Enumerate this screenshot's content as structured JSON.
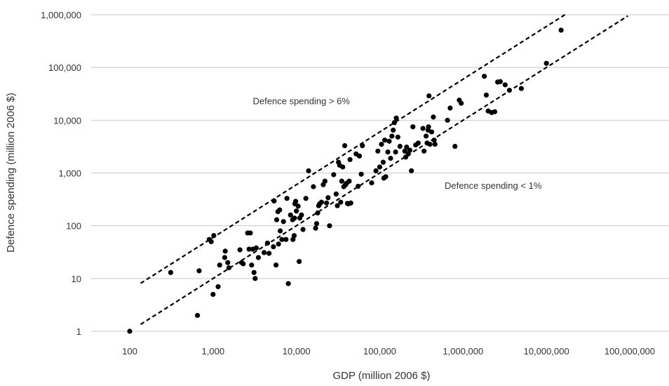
{
  "chart_data": {
    "type": "scatter",
    "xlabel": "GDP (million 2006 $)",
    "ylabel": "Defence spending (million 2006 $)",
    "xscale": "log",
    "yscale": "log",
    "xlim": [
      100,
      100000000
    ],
    "ylim": [
      1,
      1000000
    ],
    "x_ticks": [
      100,
      1000,
      10000,
      100000,
      1000000,
      10000000,
      100000000
    ],
    "x_tick_labels": [
      "100",
      "1,000",
      "10,000",
      "100,000",
      "1,000,000",
      "10,000,000",
      "100,000,000"
    ],
    "y_ticks": [
      1,
      10,
      100,
      1000,
      10000,
      100000,
      1000000
    ],
    "y_tick_labels": [
      "1",
      "10",
      "100",
      "1,000",
      "10,000",
      "100,000",
      "1,000,000"
    ],
    "grid": "horizontal",
    "colors": {
      "points": "#000000",
      "grid": "#c8c8c8",
      "reference_lines": "#000000"
    },
    "annotations": [
      {
        "text": "Defence spending > 6%",
        "x": 3000,
        "y": 20000
      },
      {
        "text": "Defence spending < 1%",
        "x": 600000,
        "y": 500
      }
    ],
    "reference_lines": [
      {
        "style": "dashed",
        "share_of_gdp": 0.06,
        "x_range": [
          135,
          17000000
        ]
      },
      {
        "style": "dashed",
        "share_of_gdp": 0.01,
        "x_range": [
          135,
          95000000
        ]
      }
    ],
    "points": [
      [
        100,
        1
      ],
      [
        310,
        13
      ],
      [
        650,
        2
      ],
      [
        680,
        14
      ],
      [
        900,
        55
      ],
      [
        950,
        50
      ],
      [
        1000,
        5
      ],
      [
        1020,
        65
      ],
      [
        1150,
        7
      ],
      [
        1200,
        18
      ],
      [
        1380,
        25
      ],
      [
        1400,
        33
      ],
      [
        1500,
        20
      ],
      [
        1550,
        16
      ],
      [
        2100,
        35
      ],
      [
        2200,
        20
      ],
      [
        2300,
        19
      ],
      [
        2600,
        73
      ],
      [
        2700,
        36
      ],
      [
        2800,
        73
      ],
      [
        2900,
        18
      ],
      [
        3000,
        36
      ],
      [
        3100,
        13
      ],
      [
        3200,
        10
      ],
      [
        3300,
        38
      ],
      [
        3500,
        25
      ],
      [
        4100,
        31
      ],
      [
        4500,
        47
      ],
      [
        4700,
        30
      ],
      [
        5300,
        40
      ],
      [
        5400,
        295
      ],
      [
        5700,
        18
      ],
      [
        5800,
        130
      ],
      [
        6000,
        185
      ],
      [
        6100,
        45
      ],
      [
        6300,
        200
      ],
      [
        6400,
        80
      ],
      [
        6700,
        55
      ],
      [
        7000,
        120
      ],
      [
        7500,
        55
      ],
      [
        7700,
        330
      ],
      [
        8000,
        8
      ],
      [
        8500,
        160
      ],
      [
        9000,
        130
      ],
      [
        9100,
        55
      ],
      [
        9400,
        65
      ],
      [
        9500,
        140
      ],
      [
        9600,
        260
      ],
      [
        9800,
        290
      ],
      [
        10000,
        190
      ],
      [
        10500,
        235
      ],
      [
        10800,
        21
      ],
      [
        11000,
        140
      ],
      [
        11500,
        160
      ],
      [
        12000,
        85
      ],
      [
        13000,
        330
      ],
      [
        14000,
        1100
      ],
      [
        16000,
        550
      ],
      [
        17000,
        90
      ],
      [
        17500,
        110
      ],
      [
        18000,
        175
      ],
      [
        18500,
        240
      ],
      [
        19000,
        260
      ],
      [
        20000,
        280
      ],
      [
        21000,
        600
      ],
      [
        22000,
        700
      ],
      [
        23000,
        270
      ],
      [
        24000,
        340
      ],
      [
        25000,
        100
      ],
      [
        28000,
        930
      ],
      [
        30000,
        400
      ],
      [
        31000,
        240
      ],
      [
        32000,
        1600
      ],
      [
        33000,
        1400
      ],
      [
        34000,
        280
      ],
      [
        35000,
        700
      ],
      [
        36000,
        1300
      ],
      [
        37000,
        550
      ],
      [
        38000,
        3300
      ],
      [
        39000,
        600
      ],
      [
        40000,
        640
      ],
      [
        41000,
        265
      ],
      [
        42000,
        260
      ],
      [
        43000,
        700
      ],
      [
        44000,
        1800
      ],
      [
        45000,
        270
      ],
      [
        52000,
        2300
      ],
      [
        55000,
        560
      ],
      [
        57000,
        2100
      ],
      [
        60000,
        950
      ],
      [
        62000,
        3300
      ],
      [
        80000,
        650
      ],
      [
        90000,
        1100
      ],
      [
        95000,
        2600
      ],
      [
        100000,
        1300
      ],
      [
        105000,
        3500
      ],
      [
        110000,
        1600
      ],
      [
        112000,
        800
      ],
      [
        115000,
        4200
      ],
      [
        118000,
        850
      ],
      [
        125000,
        2500
      ],
      [
        130000,
        4000
      ],
      [
        135000,
        1900
      ],
      [
        140000,
        5000
      ],
      [
        145000,
        6500
      ],
      [
        150000,
        9000
      ],
      [
        155000,
        2500
      ],
      [
        158000,
        11000
      ],
      [
        165000,
        4800
      ],
      [
        175000,
        3200
      ],
      [
        200000,
        2600
      ],
      [
        205000,
        2000
      ],
      [
        210000,
        3100
      ],
      [
        220000,
        2300
      ],
      [
        230000,
        2700
      ],
      [
        240000,
        1100
      ],
      [
        250000,
        7500
      ],
      [
        270000,
        3400
      ],
      [
        290000,
        3700
      ],
      [
        330000,
        7000
      ],
      [
        340000,
        2600
      ],
      [
        360000,
        5000
      ],
      [
        370000,
        3700
      ],
      [
        380000,
        6500
      ],
      [
        385000,
        7500
      ],
      [
        390000,
        29000
      ],
      [
        400000,
        3500
      ],
      [
        420000,
        6000
      ],
      [
        440000,
        11500
      ],
      [
        450000,
        4200
      ],
      [
        460000,
        3500
      ],
      [
        650000,
        10000
      ],
      [
        700000,
        17000
      ],
      [
        800000,
        3200
      ],
      [
        900000,
        24000
      ],
      [
        950000,
        21000
      ],
      [
        1800000,
        68000
      ],
      [
        1900000,
        30000
      ],
      [
        2000000,
        15000
      ],
      [
        2200000,
        14000
      ],
      [
        2400000,
        14500
      ],
      [
        2600000,
        53000
      ],
      [
        2800000,
        54000
      ],
      [
        3200000,
        47000
      ],
      [
        3600000,
        37000
      ],
      [
        5000000,
        40000
      ],
      [
        10000000,
        120000
      ],
      [
        15000000,
        510000
      ]
    ]
  }
}
